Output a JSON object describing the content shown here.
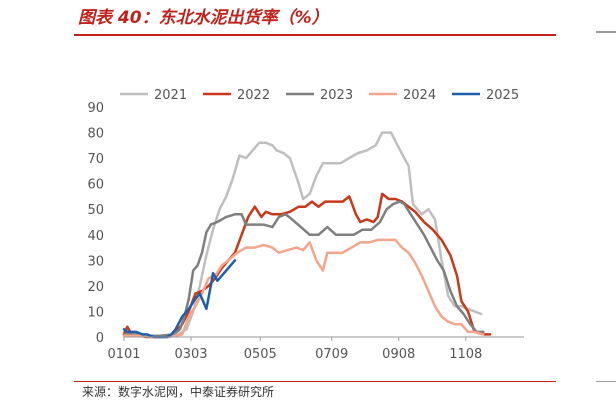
{
  "header": {
    "title": "图表 40：东北水泥出货率（%）"
  },
  "footer": {
    "source": "来源：数字水泥网，中泰证券研究所"
  },
  "chart_data": {
    "type": "line",
    "title": "",
    "xlabel": "",
    "ylabel": "",
    "ylim": [
      0,
      90
    ],
    "yticks": [
      0,
      10,
      20,
      30,
      40,
      50,
      60,
      70,
      80,
      90
    ],
    "xlim": [
      1,
      365
    ],
    "xticks": [
      {
        "label": "0101",
        "day": 1
      },
      {
        "label": "0303",
        "day": 62
      },
      {
        "label": "0505",
        "day": 125
      },
      {
        "label": "0709",
        "day": 190
      },
      {
        "label": "0908",
        "day": 251
      },
      {
        "label": "1108",
        "day": 312
      }
    ],
    "grid": false,
    "legend": "top",
    "series": [
      {
        "name": "2021",
        "color": "#bfbfbf",
        "points": [
          [
            1,
            2
          ],
          [
            10,
            1.5
          ],
          [
            20,
            0.5
          ],
          [
            30,
            0
          ],
          [
            42,
            0
          ],
          [
            50,
            1
          ],
          [
            58,
            3
          ],
          [
            64,
            10
          ],
          [
            70,
            20
          ],
          [
            76,
            32
          ],
          [
            82,
            42
          ],
          [
            88,
            50
          ],
          [
            94,
            55
          ],
          [
            100,
            62
          ],
          [
            106,
            71
          ],
          [
            112,
            70
          ],
          [
            118,
            73
          ],
          [
            124,
            76
          ],
          [
            130,
            76
          ],
          [
            136,
            75
          ],
          [
            140,
            73
          ],
          [
            146,
            72
          ],
          [
            152,
            70
          ],
          [
            156,
            65
          ],
          [
            160,
            60
          ],
          [
            164,
            54
          ],
          [
            170,
            56
          ],
          [
            176,
            63
          ],
          [
            182,
            68
          ],
          [
            190,
            68
          ],
          [
            198,
            68
          ],
          [
            206,
            70
          ],
          [
            214,
            72
          ],
          [
            222,
            73
          ],
          [
            230,
            75
          ],
          [
            236,
            80
          ],
          [
            244,
            80
          ],
          [
            250,
            75
          ],
          [
            256,
            70
          ],
          [
            260,
            67
          ],
          [
            264,
            52
          ],
          [
            272,
            48
          ],
          [
            278,
            50
          ],
          [
            284,
            46
          ],
          [
            290,
            30
          ],
          [
            296,
            16
          ],
          [
            302,
            12
          ],
          [
            308,
            12
          ],
          [
            314,
            11
          ],
          [
            320,
            10
          ],
          [
            326,
            9
          ]
        ]
      },
      {
        "name": "2022",
        "color": "#c8381a",
        "points": [
          [
            1,
            1
          ],
          [
            4,
            4
          ],
          [
            8,
            1
          ],
          [
            14,
            0.5
          ],
          [
            22,
            0
          ],
          [
            36,
            0
          ],
          [
            46,
            1
          ],
          [
            54,
            5
          ],
          [
            60,
            10
          ],
          [
            66,
            17
          ],
          [
            72,
            18
          ],
          [
            78,
            20
          ],
          [
            84,
            23
          ],
          [
            90,
            27
          ],
          [
            96,
            30
          ],
          [
            102,
            33
          ],
          [
            108,
            40
          ],
          [
            114,
            47
          ],
          [
            120,
            51
          ],
          [
            126,
            47
          ],
          [
            130,
            49
          ],
          [
            136,
            48
          ],
          [
            144,
            48
          ],
          [
            152,
            49
          ],
          [
            160,
            51
          ],
          [
            166,
            51
          ],
          [
            172,
            53
          ],
          [
            178,
            51
          ],
          [
            184,
            53
          ],
          [
            192,
            53
          ],
          [
            200,
            53
          ],
          [
            206,
            55
          ],
          [
            212,
            48
          ],
          [
            216,
            45
          ],
          [
            222,
            46
          ],
          [
            228,
            45
          ],
          [
            232,
            47
          ],
          [
            236,
            56
          ],
          [
            242,
            54
          ],
          [
            248,
            54
          ],
          [
            254,
            53
          ],
          [
            260,
            51
          ],
          [
            266,
            49
          ],
          [
            274,
            45
          ],
          [
            282,
            42
          ],
          [
            290,
            38
          ],
          [
            298,
            32
          ],
          [
            304,
            24
          ],
          [
            308,
            14
          ],
          [
            314,
            10
          ],
          [
            320,
            2
          ],
          [
            328,
            1
          ],
          [
            334,
            1
          ]
        ]
      },
      {
        "name": "2023",
        "color": "#7f7f7f",
        "points": [
          [
            1,
            1
          ],
          [
            10,
            1
          ],
          [
            20,
            0.5
          ],
          [
            34,
            0.5
          ],
          [
            46,
            1
          ],
          [
            52,
            3
          ],
          [
            56,
            8
          ],
          [
            60,
            15
          ],
          [
            64,
            26
          ],
          [
            68,
            28
          ],
          [
            72,
            33
          ],
          [
            76,
            41
          ],
          [
            80,
            44
          ],
          [
            86,
            45
          ],
          [
            94,
            47
          ],
          [
            102,
            48
          ],
          [
            108,
            48
          ],
          [
            112,
            44
          ],
          [
            120,
            44
          ],
          [
            128,
            44
          ],
          [
            136,
            43
          ],
          [
            142,
            47
          ],
          [
            148,
            48
          ],
          [
            154,
            46
          ],
          [
            162,
            43
          ],
          [
            170,
            40
          ],
          [
            178,
            40
          ],
          [
            186,
            43
          ],
          [
            194,
            40
          ],
          [
            202,
            40
          ],
          [
            210,
            40
          ],
          [
            218,
            42
          ],
          [
            226,
            42
          ],
          [
            234,
            45
          ],
          [
            240,
            50
          ],
          [
            246,
            52
          ],
          [
            252,
            53
          ],
          [
            256,
            52
          ],
          [
            262,
            48
          ],
          [
            268,
            44
          ],
          [
            274,
            40
          ],
          [
            280,
            35
          ],
          [
            286,
            30
          ],
          [
            292,
            26
          ],
          [
            298,
            18
          ],
          [
            304,
            12
          ],
          [
            310,
            9
          ],
          [
            316,
            5
          ],
          [
            322,
            2
          ],
          [
            328,
            2
          ]
        ]
      },
      {
        "name": "2024",
        "color": "#f4a58c",
        "points": [
          [
            1,
            0.5
          ],
          [
            14,
            0.5
          ],
          [
            30,
            0
          ],
          [
            42,
            0
          ],
          [
            54,
            1
          ],
          [
            60,
            8
          ],
          [
            66,
            12
          ],
          [
            72,
            17
          ],
          [
            78,
            23
          ],
          [
            84,
            24
          ],
          [
            90,
            28
          ],
          [
            96,
            30
          ],
          [
            104,
            33
          ],
          [
            112,
            35
          ],
          [
            120,
            35
          ],
          [
            128,
            36
          ],
          [
            136,
            35
          ],
          [
            142,
            33
          ],
          [
            150,
            34
          ],
          [
            158,
            35
          ],
          [
            164,
            34
          ],
          [
            170,
            37
          ],
          [
            176,
            30
          ],
          [
            182,
            26
          ],
          [
            186,
            33
          ],
          [
            192,
            33
          ],
          [
            200,
            33
          ],
          [
            208,
            35
          ],
          [
            216,
            37
          ],
          [
            224,
            37
          ],
          [
            232,
            38
          ],
          [
            240,
            38
          ],
          [
            248,
            38
          ],
          [
            254,
            35
          ],
          [
            260,
            33
          ],
          [
            266,
            29
          ],
          [
            272,
            24
          ],
          [
            278,
            18
          ],
          [
            284,
            12
          ],
          [
            290,
            8
          ],
          [
            296,
            6
          ],
          [
            302,
            5
          ],
          [
            308,
            5
          ],
          [
            314,
            2
          ],
          [
            320,
            2
          ],
          [
            328,
            1
          ]
        ]
      },
      {
        "name": "2025",
        "color": "#1f5fa8",
        "points": [
          [
            1,
            3
          ],
          [
            4,
            2
          ],
          [
            8,
            2
          ],
          [
            12,
            2
          ],
          [
            18,
            1
          ],
          [
            22,
            1
          ],
          [
            28,
            0
          ],
          [
            34,
            0
          ],
          [
            40,
            0
          ],
          [
            44,
            1
          ],
          [
            48,
            3
          ],
          [
            54,
            8
          ],
          [
            60,
            11
          ],
          [
            66,
            15
          ],
          [
            70,
            17
          ],
          [
            74,
            13
          ],
          [
            76,
            11
          ],
          [
            80,
            20
          ],
          [
            82,
            25
          ],
          [
            86,
            22
          ],
          [
            90,
            24
          ],
          [
            94,
            26
          ],
          [
            98,
            28
          ],
          [
            102,
            30
          ]
        ]
      }
    ]
  }
}
